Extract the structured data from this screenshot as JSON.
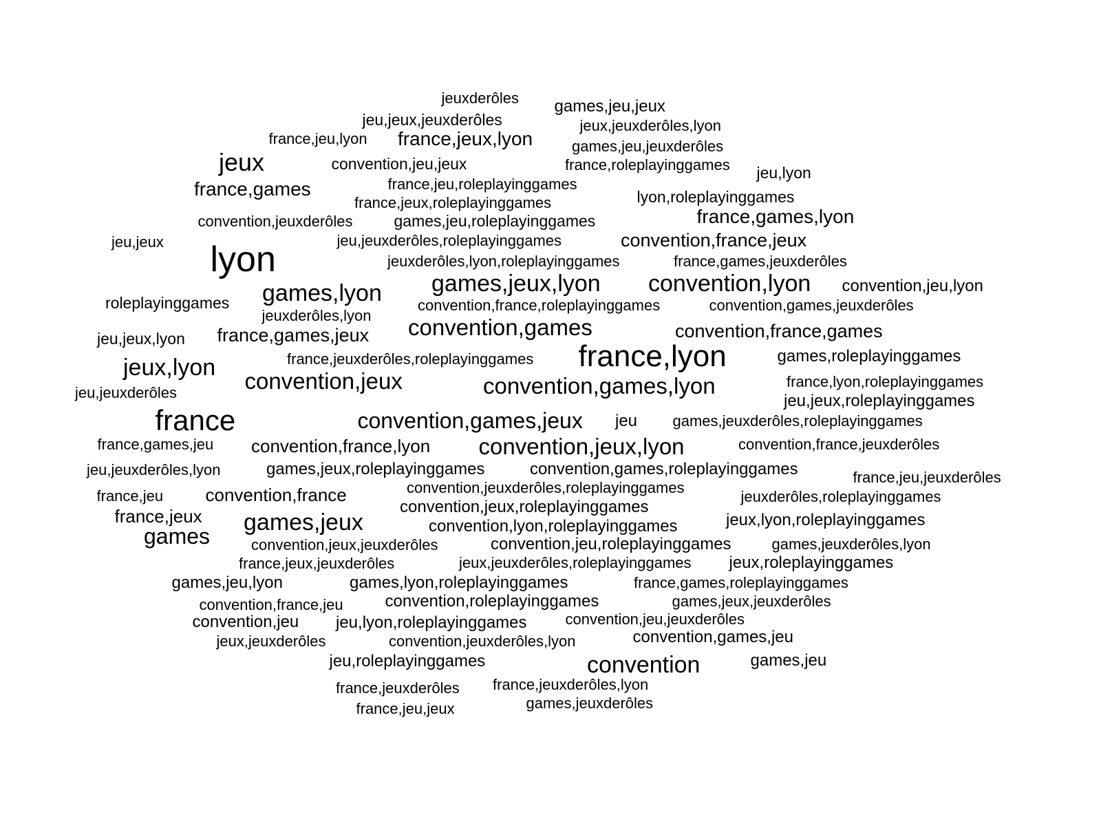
{
  "text_color": "#000000",
  "background": "#ffffff",
  "words": [
    "jeuxderôles",
    "games,jeu,jeux",
    "jeu,jeux,jeuxderôles",
    "jeux,jeuxderôles,lyon",
    "france,jeu,lyon",
    "france,jeux,lyon",
    "games,jeu,jeuxderôles",
    "jeux",
    "convention,jeu,jeux",
    "france,roleplayinggames",
    "jeu,lyon",
    "france,games",
    "france,jeu,roleplayinggames",
    "lyon,roleplayinggames",
    "france,jeux,roleplayinggames",
    "convention,jeuxderôles",
    "games,jeu,roleplayinggames",
    "france,games,lyon",
    "jeu,jeux",
    "jeu,jeuxderôles,roleplayinggames",
    "convention,france,jeux",
    "lyon",
    "jeuxderôles,lyon,roleplayinggames",
    "france,games,jeuxderôles",
    "games,jeux,lyon",
    "convention,lyon",
    "convention,jeu,lyon",
    "roleplayinggames",
    "games,lyon",
    "convention,france,roleplayinggames",
    "convention,games,jeuxderôles",
    "jeuxderôles,lyon",
    "convention,games",
    "convention,france,games",
    "jeu,jeux,lyon",
    "france,games,jeux",
    "france,lyon",
    "games,roleplayinggames",
    "jeux,lyon",
    "france,jeuxderôles,roleplayinggames",
    "convention,jeux",
    "convention,games,lyon",
    "france,lyon,roleplayinggames",
    "jeu,jeuxderôles",
    "jeu,jeux,roleplayinggames",
    "france",
    "convention,games,jeux",
    "jeu",
    "games,jeuxderôles,roleplayinggames",
    "france,games,jeu",
    "convention,france,lyon",
    "convention,jeux,lyon",
    "convention,france,jeuxderôles",
    "jeu,jeuxderôles,lyon",
    "games,jeux,roleplayinggames",
    "convention,games,roleplayinggames",
    "france,jeu,jeuxderôles",
    "france,jeu",
    "convention,france",
    "convention,jeuxderôles,roleplayinggames",
    "jeuxderôles,roleplayinggames",
    "france,jeux",
    "games,jeux",
    "convention,jeux,roleplayinggames",
    "jeux,lyon,roleplayinggames",
    "games",
    "convention,lyon,roleplayinggames",
    "convention,jeux,jeuxderôles",
    "convention,jeu,roleplayinggames",
    "games,jeuxderôles,lyon",
    "france,jeux,jeuxderôles",
    "jeux,jeuxderôles,roleplayinggames",
    "jeux,roleplayinggames",
    "games,jeu,lyon",
    "games,lyon,roleplayinggames",
    "france,games,roleplayinggames",
    "convention,france,jeu",
    "convention,roleplayinggames",
    "games,jeux,jeuxderôles",
    "convention,jeu",
    "jeu,lyon,roleplayinggames",
    "convention,jeu,jeuxderôles",
    "jeux,jeuxderôles",
    "convention,jeuxderôles,lyon",
    "convention,games,jeu",
    "jeu,roleplayinggames",
    "convention",
    "games,jeu",
    "france,jeuxderôles",
    "france,jeuxderôles,lyon",
    "france,jeu,jeux",
    "games,jeuxderôles"
  ]
}
